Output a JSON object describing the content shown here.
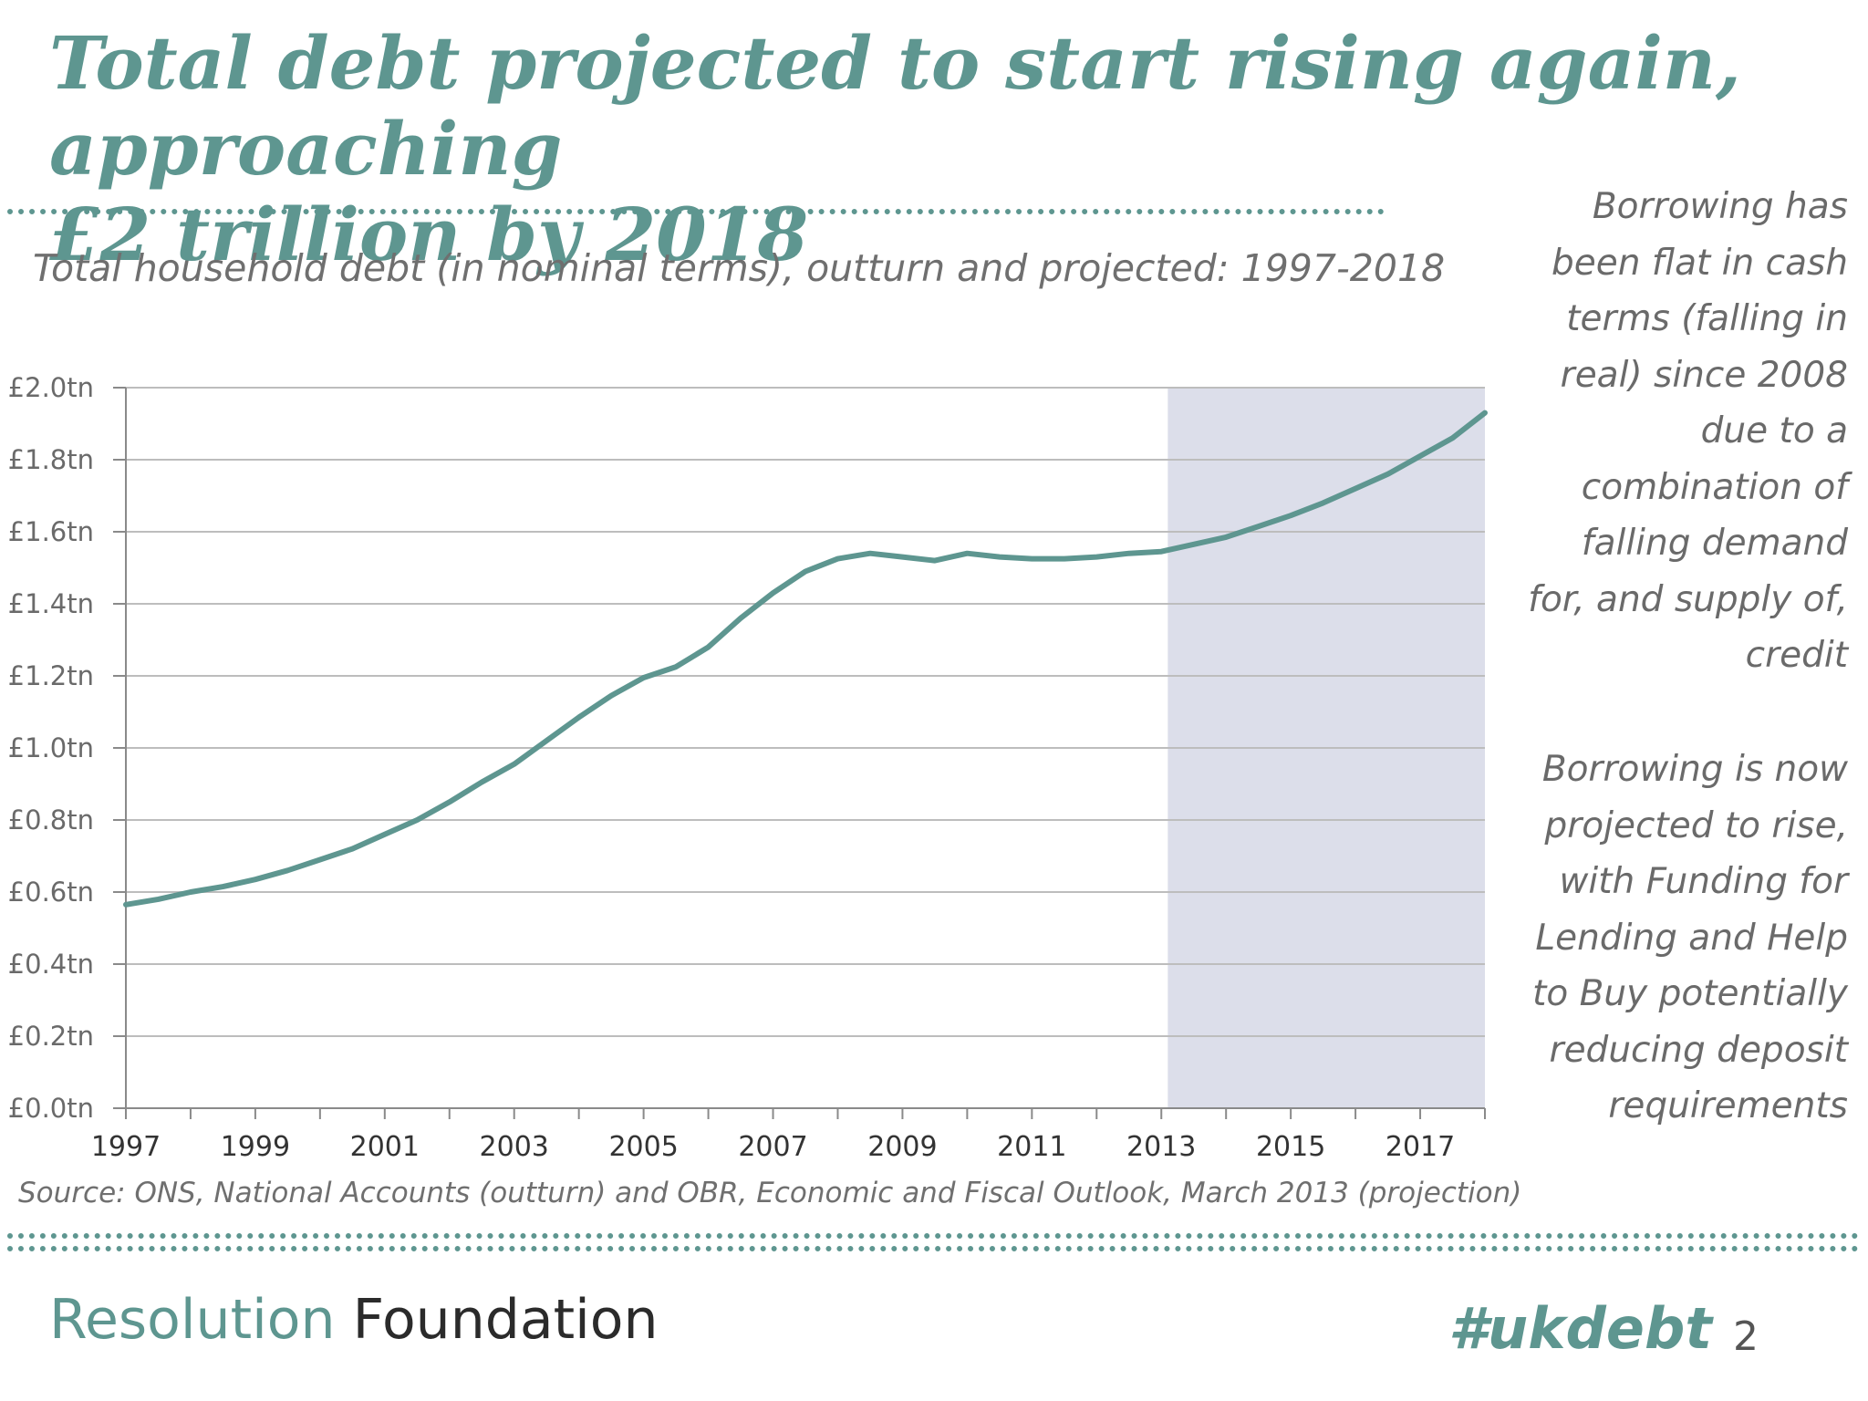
{
  "slide": {
    "title_lines": [
      "Total debt projected to start rising again, approaching",
      "£2 trillion by 2018"
    ],
    "side_note_1_lines": [
      "Borrowing has",
      "been flat in cash",
      "terms (falling in",
      "real) since 2008",
      "due to a",
      "combination of",
      "falling demand",
      "for, and supply of,",
      "credit"
    ],
    "side_note_2_lines": [
      "Borrowing is now",
      "projected to rise,",
      "with Funding for",
      "Lending and Help",
      "to Buy potentially",
      "reducing deposit",
      "requirements"
    ],
    "source": "Source: ONS, National Accounts (outturn) and OBR, Economic and Fiscal Outlook, March 2013 (projection)",
    "brand_part1": "Resolution",
    "brand_part2": "Foundation",
    "hashtag": "#ukdebt",
    "page_number": "2"
  },
  "colors": {
    "accent": "#5e9690",
    "projection_shade": "#dcdeea",
    "grid": "#bdbdbd",
    "text_gray": "#6f6f6f"
  },
  "chart_data": {
    "type": "line",
    "title": "Total household debt  (in nominal terms), outturn and projected: 1997-2018",
    "xlabel": "",
    "ylabel": "",
    "xlim": [
      1997,
      2018
    ],
    "ylim": [
      0,
      2.0
    ],
    "y_ticks": [
      0.0,
      0.2,
      0.4,
      0.6,
      0.8,
      1.0,
      1.2,
      1.4,
      1.6,
      1.8,
      2.0
    ],
    "y_tick_labels": [
      "£0.0tn",
      "£0.2tn",
      "£0.4tn",
      "£0.6tn",
      "£0.8tn",
      "£1.0tn",
      "£1.2tn",
      "£1.4tn",
      "£1.6tn",
      "£1.8tn",
      "£2.0tn"
    ],
    "x_ticks": [
      1997,
      1999,
      2001,
      2003,
      2005,
      2007,
      2009,
      2011,
      2013,
      2015,
      2017
    ],
    "x_tick_labels": [
      "1997",
      "1999",
      "2001",
      "2003",
      "2005",
      "2007",
      "2009",
      "2011",
      "2013",
      "2015",
      "2017"
    ],
    "grid": true,
    "projection_start": 2013.1,
    "projection_end": 2018,
    "series": [
      {
        "color": "#5e9690",
        "x": [
          1997.0,
          1997.5,
          1998.0,
          1998.5,
          1999.0,
          1999.5,
          2000.0,
          2000.5,
          2001.0,
          2001.5,
          2002.0,
          2002.5,
          2003.0,
          2003.5,
          2004.0,
          2004.5,
          2005.0,
          2005.5,
          2006.0,
          2006.5,
          2007.0,
          2007.5,
          2008.0,
          2008.5,
          2009.0,
          2009.5,
          2010.0,
          2010.5,
          2011.0,
          2011.5,
          2012.0,
          2012.5,
          2013.0,
          2013.5,
          2014.0,
          2014.5,
          2015.0,
          2015.5,
          2016.0,
          2016.5,
          2017.0,
          2017.5,
          2018.0
        ],
        "y": [
          0.565,
          0.58,
          0.6,
          0.615,
          0.635,
          0.66,
          0.69,
          0.72,
          0.76,
          0.8,
          0.85,
          0.905,
          0.955,
          1.02,
          1.085,
          1.145,
          1.195,
          1.225,
          1.28,
          1.36,
          1.43,
          1.49,
          1.525,
          1.54,
          1.53,
          1.52,
          1.54,
          1.53,
          1.525,
          1.525,
          1.53,
          1.54,
          1.545,
          1.565,
          1.585,
          1.615,
          1.645,
          1.68,
          1.72,
          1.76,
          1.81,
          1.86,
          1.93
        ]
      }
    ]
  }
}
